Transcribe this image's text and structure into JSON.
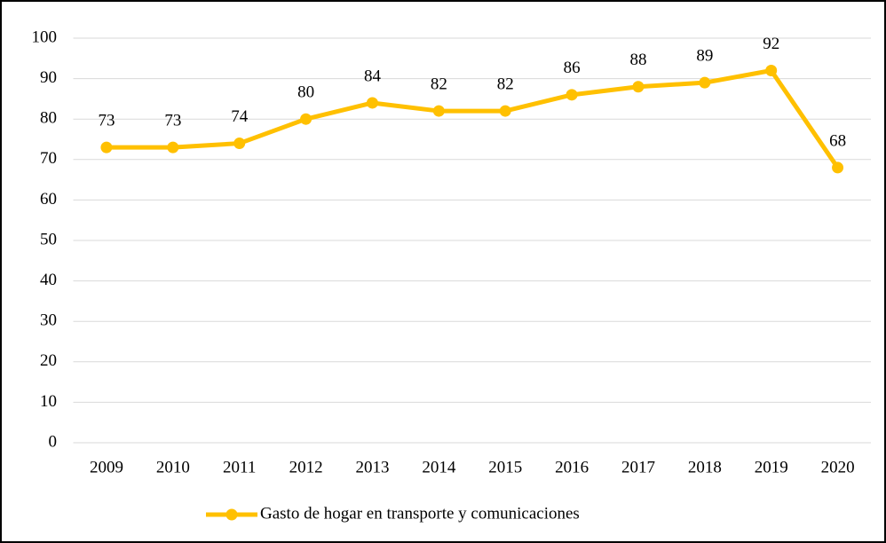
{
  "chart_data": {
    "type": "line",
    "categories": [
      "2009",
      "2010",
      "2011",
      "2012",
      "2013",
      "2014",
      "2015",
      "2016",
      "2017",
      "2018",
      "2019",
      "2020"
    ],
    "series": [
      {
        "name": "Gasto de hogar en transporte y comunicaciones",
        "color": "#ffc000",
        "values": [
          73,
          73,
          74,
          80,
          84,
          82,
          82,
          86,
          88,
          89,
          92,
          68
        ]
      }
    ],
    "ylim": [
      0,
      100
    ],
    "yticks": [
      0,
      10,
      20,
      30,
      40,
      50,
      60,
      70,
      80,
      90,
      100
    ],
    "grid": true,
    "legend": "bottom"
  }
}
